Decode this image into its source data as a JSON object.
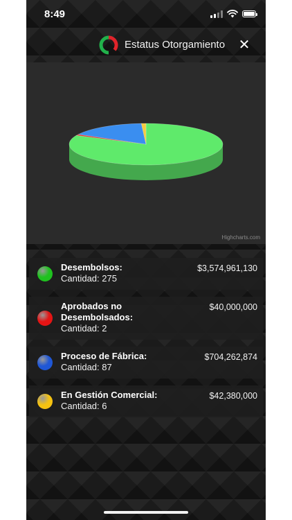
{
  "status_bar": {
    "time": "8:49"
  },
  "header": {
    "title": "Estatus Otorgamiento",
    "close_label": "✕",
    "logo_colors": [
      "#21b14b",
      "#e0242b"
    ]
  },
  "chart_data": {
    "type": "pie",
    "title": "",
    "credits": "Highcharts.com",
    "categories": [
      "Desembolsos",
      "Aprobados no Desembolsados",
      "Proceso de Fábrica",
      "En Gestión Comercial"
    ],
    "values": [
      3574961130,
      40000000,
      704262874,
      42380000
    ],
    "colors": [
      "#5fea6b",
      "#e13a36",
      "#3a8ef0",
      "#f4cb42"
    ]
  },
  "items": [
    {
      "name": "Desembolsos:",
      "count": "Cantidad: 275",
      "amount": "$3,574,961,130",
      "color": "#1fc21f"
    },
    {
      "name": "Aprobados no Desembolsados:",
      "count": "Cantidad: 2",
      "amount": "$40,000,000",
      "color": "#e51414"
    },
    {
      "name": "Proceso de Fábrica:",
      "count": "Cantidad: 87",
      "amount": "$704,262,874",
      "color": "#1f57d6"
    },
    {
      "name": "En Gestión Comercial:",
      "count": "Cantidad: 6",
      "amount": "$42,380,000",
      "color": "#f5c211"
    }
  ]
}
